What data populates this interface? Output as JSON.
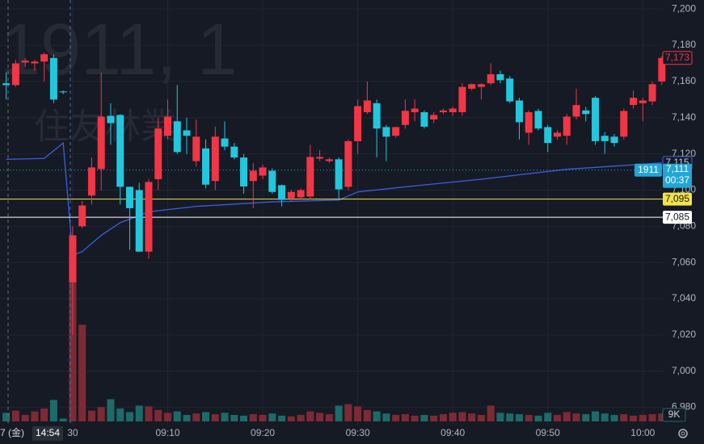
{
  "chart_data": {
    "type": "candlestick",
    "watermark": "1911, 1",
    "watermark_sub": "住友林業",
    "x": [
      -7,
      -6,
      -5,
      -4,
      -3,
      -2,
      -1,
      0,
      1,
      2,
      3,
      4,
      5,
      6,
      7,
      8,
      9,
      10,
      11,
      12,
      13,
      14,
      15,
      16,
      17,
      18,
      19,
      20,
      21,
      22,
      23,
      24,
      25,
      26,
      27,
      28,
      29,
      30,
      31,
      32,
      33,
      34,
      35,
      36,
      37,
      38,
      39,
      40,
      41,
      42,
      43,
      44,
      45,
      46,
      47,
      48,
      49,
      50,
      51,
      52,
      53,
      54,
      55,
      56,
      57,
      58,
      59,
      60,
      61,
      62
    ],
    "open": [
      7159,
      7158,
      7170.5,
      7170,
      7171,
      7173,
      7154.5,
      7049,
      7080,
      7097,
      7111.6,
      7141,
      7141.5,
      7101.8,
      7100,
      7066,
      7106,
      7130,
      7138,
      7133,
      7116,
      7123,
      7105,
      7128.5,
      7124,
      7118,
      7105,
      7108,
      7110.7,
      7102.7,
      7095.5,
      7096,
      7096.4,
      7117.4,
      7116,
      7117,
      7101.8,
      7127,
      7143,
      7148,
      7134.8,
      7130,
      7136,
      7143,
      7143,
      7139,
      7143,
      7143,
      7143,
      7156,
      7157,
      7159,
      7164,
      7161.6,
      7149.5,
      7131.7,
      7143.7,
      7134.8,
      7129.5,
      7130,
      7140.6,
      7144,
      7151,
      7130,
      7129.5,
      7129.5,
      7147,
      7148,
      7149,
      7160
    ],
    "high": [
      7165,
      7172,
      7173,
      7172,
      7176,
      7175,
      7155,
      7080,
      7094,
      7118,
      7165,
      7148,
      7142,
      7102,
      7104,
      7106,
      7140,
      7150,
      7158,
      7140,
      7139,
      7128,
      7135,
      7138,
      7126,
      7120,
      7115,
      7114,
      7112,
      7103,
      7100,
      7101,
      7125,
      7122,
      7118,
      7118,
      7128,
      7150,
      7160,
      7150,
      7136,
      7135,
      7150,
      7150,
      7144,
      7143,
      7145,
      7146,
      7159,
      7159,
      7159,
      7170,
      7166,
      7163,
      7151,
      7144,
      7145,
      7136,
      7133,
      7142,
      7156,
      7146,
      7152,
      7132,
      7131,
      7145,
      7155,
      7151,
      7160,
      7174
    ],
    "low": [
      7150,
      7157,
      7168,
      7166,
      7160,
      7148,
      7153,
      7020,
      7079,
      7092,
      7100,
      7125,
      7092,
      7067,
      7066,
      7062,
      7100,
      7128,
      7120,
      7120,
      7113,
      7101,
      7100,
      7122,
      7117,
      7098,
      7090,
      7106,
      7098,
      7091,
      7094,
      7095,
      7095,
      7116,
      7115,
      7095,
      7100,
      7120,
      7142,
      7118,
      7116,
      7129,
      7134,
      7138,
      7134,
      7137,
      7142,
      7141,
      7141,
      7155,
      7150,
      7158,
      7159,
      7148,
      7128,
      7125,
      7133,
      7121,
      7128,
      7125,
      7139,
      7138,
      7125,
      7120,
      7124,
      7128,
      7145,
      7138,
      7147,
      7158
    ],
    "close": [
      7158,
      7170,
      7171.5,
      7171,
      7175,
      7150,
      7154,
      7075,
      7091.5,
      7112.5,
      7140.6,
      7137,
      7101.8,
      7090,
      7066,
      7104.5,
      7134,
      7140.6,
      7121,
      7130,
      7129.5,
      7103,
      7129.5,
      7124,
      7118,
      7102,
      7110.7,
      7112.5,
      7099,
      7094.6,
      7099,
      7100,
      7118.3,
      7118.3,
      7117,
      7100.4,
      7127,
      7146.4,
      7149.5,
      7134,
      7129.5,
      7134.8,
      7143.8,
      7145,
      7135,
      7141.5,
      7144,
      7145,
      7157,
      7158.5,
      7158.5,
      7164,
      7160.7,
      7149,
      7137.5,
      7143,
      7134,
      7126,
      7131.7,
      7140.6,
      7147,
      7142,
      7127,
      7127,
      7126,
      7143.7,
      7151,
      7149.5,
      7158.5,
      7173
    ],
    "volume": [
      12000,
      15000,
      9000,
      14000,
      18000,
      30000,
      4000,
      233000,
      135000,
      15000,
      20000,
      31000,
      18000,
      13000,
      22000,
      21000,
      16000,
      12000,
      14000,
      9000,
      11000,
      13000,
      10000,
      12000,
      9000,
      8000,
      10000,
      9000,
      11000,
      8000,
      7000,
      9000,
      14000,
      12000,
      10000,
      22000,
      24000,
      21000,
      16000,
      14000,
      11000,
      9000,
      10000,
      8000,
      9000,
      8000,
      10000,
      12000,
      13000,
      11000,
      9000,
      22000,
      12000,
      11000,
      10000,
      9000,
      8000,
      12000,
      9000,
      13000,
      11000,
      10000,
      14000,
      11000,
      9000,
      10000,
      8000,
      9000,
      10000,
      11000
    ],
    "vwap": {
      "color": "#3b5fe0",
      "x": [
        -7,
        -3,
        -1,
        0,
        1,
        3,
        5,
        8,
        13,
        21,
        28,
        30,
        35,
        43,
        52,
        62
      ],
      "values": [
        7117,
        7117.5,
        7126,
        7064,
        7066,
        7075,
        7082,
        7088,
        7091,
        7093.5,
        7094.5,
        7099,
        7101.8,
        7106,
        7111.5,
        7115
      ]
    },
    "xlim": [
      -7.65,
      62.1
    ],
    "ylim": [
      6970,
      7205
    ],
    "volume_lim": [
      0,
      240000
    ],
    "yticks": [
      {
        "value": 7200,
        "label": "7,200"
      },
      {
        "value": 7180,
        "label": "7,180"
      },
      {
        "value": 7160,
        "label": "7,160"
      },
      {
        "value": 7140,
        "label": "7,140"
      },
      {
        "value": 7120,
        "label": "7,120"
      },
      {
        "value": 7100,
        "label": "7,100"
      },
      {
        "value": 7080,
        "label": "7,080"
      },
      {
        "value": 7060,
        "label": "7,060"
      },
      {
        "value": 7040,
        "label": "7,040"
      },
      {
        "value": 7020,
        "label": "7,020"
      },
      {
        "value": 7000,
        "label": "7,000"
      },
      {
        "value": 6980,
        "label": "6,980"
      }
    ],
    "xticks": [
      {
        "value": 0,
        "label": "30"
      },
      {
        "value": 10,
        "label": "09:10"
      },
      {
        "value": 20,
        "label": "09:20"
      },
      {
        "value": 30,
        "label": "09:30"
      },
      {
        "value": 40,
        "label": "09:40"
      },
      {
        "value": 50,
        "label": "09:50"
      },
      {
        "value": 60,
        "label": "10:00"
      }
    ],
    "crosshair": {
      "date": "7 (金)",
      "time": "14:54"
    },
    "last_price": {
      "value": 7173,
      "label": "7,173"
    },
    "vwap_price": {
      "value": 7115,
      "label": "7,115"
    },
    "current": {
      "symbol": "1911",
      "value": 7111,
      "label": "7,111",
      "countdown": "00:37"
    },
    "price_lines": [
      {
        "value": 7095,
        "label": "7,095",
        "color": "#f2e34a"
      },
      {
        "value": 7085,
        "label": "7,085",
        "color": "#ffffff"
      }
    ],
    "volume_tick": {
      "value": 9000,
      "label": "9K"
    },
    "up_color": "#f23645",
    "down_color": "#22c7dd",
    "grid": true
  }
}
